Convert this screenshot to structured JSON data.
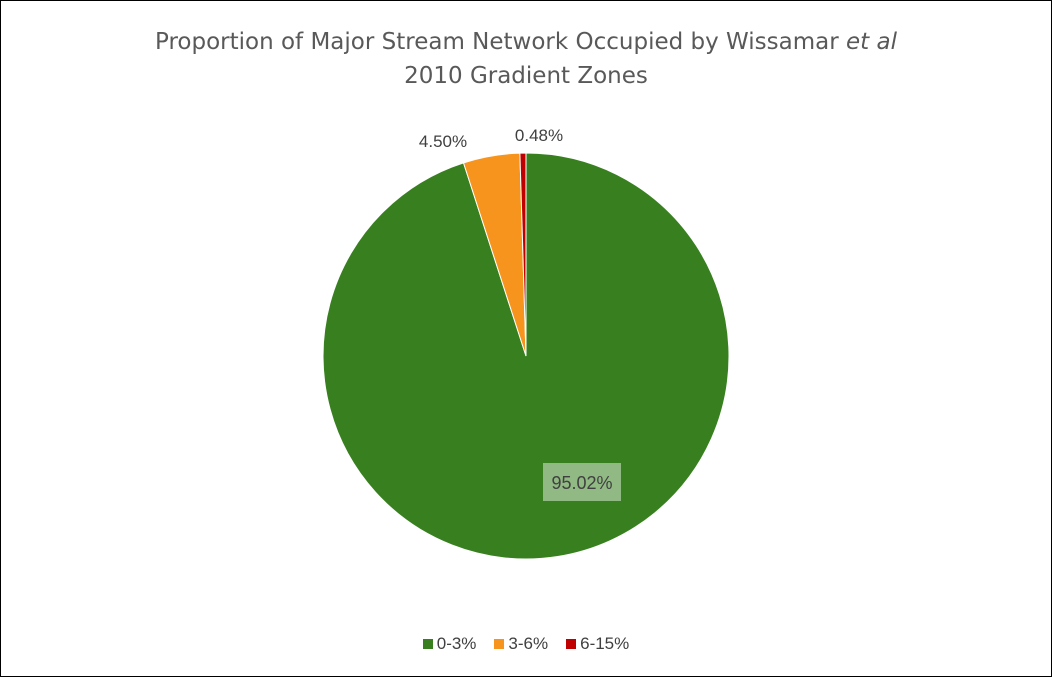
{
  "chart_data": {
    "type": "pie",
    "title_line1": "Proportion of Major Stream Network Occupied by Wissamar",
    "title_italic": "et al",
    "title_line2": "2010 Gradient Zones",
    "categories": [
      "0-3%",
      "3-6%",
      "6-15%"
    ],
    "values": [
      95.02,
      4.5,
      0.48
    ],
    "labels": [
      "95.02%",
      "4.50%",
      "0.48%"
    ],
    "colors": [
      "#38801f",
      "#f7941d",
      "#c00000"
    ],
    "legend_position": "bottom",
    "start_direction": "top, clockwise"
  }
}
